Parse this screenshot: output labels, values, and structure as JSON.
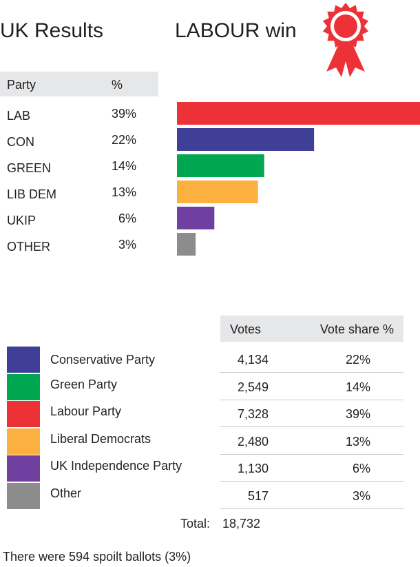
{
  "header": {
    "title": "UK Results",
    "winner": "LABOUR win",
    "rosette_color": "#ec3237"
  },
  "results_table": {
    "col_party": "Party",
    "col_pct": "%"
  },
  "chart_data": {
    "type": "bar",
    "orientation": "horizontal",
    "categories": [
      "LAB",
      "CON",
      "GREEN",
      "LIB DEM",
      "UKIP",
      "OTHER"
    ],
    "values": [
      39,
      22,
      14,
      13,
      6,
      3
    ],
    "value_labels": [
      "39%",
      "22%",
      "14%",
      "13%",
      "6%",
      "3%"
    ],
    "colors": [
      "#ec3237",
      "#3f3f98",
      "#00a650",
      "#fbb040",
      "#7040a0",
      "#8c8c8c"
    ],
    "xlim": [
      0,
      39
    ]
  },
  "votes_table": {
    "col_votes": "Votes",
    "col_share": "Vote share %",
    "rows": [
      {
        "party": "Conservative Party",
        "votes": "4,134",
        "share": "22%",
        "color": "#3f3f98"
      },
      {
        "party": "Green Party",
        "votes": "2,549",
        "share": "14%",
        "color": "#00a650"
      },
      {
        "party": "Labour Party",
        "votes": "7,328",
        "share": "39%",
        "color": "#ec3237"
      },
      {
        "party": "Liberal Democrats",
        "votes": "2,480",
        "share": "13%",
        "color": "#fbb040"
      },
      {
        "party": "UK Independence Party",
        "votes": "1,130",
        "share": "6%",
        "color": "#7040a0"
      },
      {
        "party": "Other",
        "votes": "517",
        "share": "3%",
        "color": "#8c8c8c"
      }
    ],
    "total_label": "Total:",
    "total_value": "18,732"
  },
  "footnote": "There were 594 spoilt ballots (3%)"
}
